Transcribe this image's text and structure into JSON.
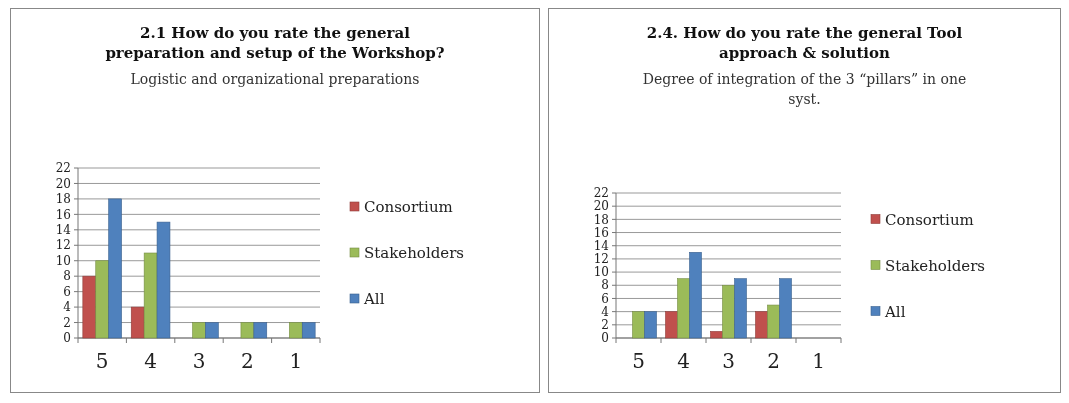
{
  "chart_data": [
    {
      "type": "bar",
      "title": "2.1 How do you rate the general preparation and setup of the Workshop?",
      "subtitle": "Logistic and organizational preparations",
      "categories": [
        "5",
        "4",
        "3",
        "2",
        "1"
      ],
      "series": [
        {
          "name": "Consortium",
          "color": "#c0504d",
          "values": [
            8,
            4,
            0,
            0,
            0
          ]
        },
        {
          "name": "Stakeholders",
          "color": "#9bbb59",
          "values": [
            10,
            11,
            2,
            2,
            2
          ]
        },
        {
          "name": "All",
          "color": "#4f81bd",
          "values": [
            18,
            15,
            2,
            2,
            2
          ]
        }
      ],
      "ylim": [
        0,
        22
      ],
      "yticks": [
        0,
        2,
        4,
        6,
        8,
        10,
        12,
        14,
        16,
        18,
        20,
        22
      ],
      "grid": "y",
      "legend": "right"
    },
    {
      "type": "bar",
      "title": "2.4. How do you rate the general Tool approach & solution",
      "subtitle": "Degree of integration of the 3 “pillars” in one syst.",
      "categories": [
        "5",
        "4",
        "3",
        "2",
        "1"
      ],
      "series": [
        {
          "name": "Consortium",
          "color": "#c0504d",
          "values": [
            0,
            4,
            1,
            4,
            0
          ]
        },
        {
          "name": "Stakeholders",
          "color": "#9bbb59",
          "values": [
            4,
            9,
            8,
            5,
            0
          ]
        },
        {
          "name": "All",
          "color": "#4f81bd",
          "values": [
            4,
            13,
            9,
            9,
            0
          ]
        }
      ],
      "ylim": [
        0,
        22
      ],
      "yticks": [
        0,
        2,
        4,
        6,
        8,
        10,
        12,
        14,
        16,
        18,
        20,
        22
      ],
      "grid": "y",
      "legend": "right"
    }
  ]
}
